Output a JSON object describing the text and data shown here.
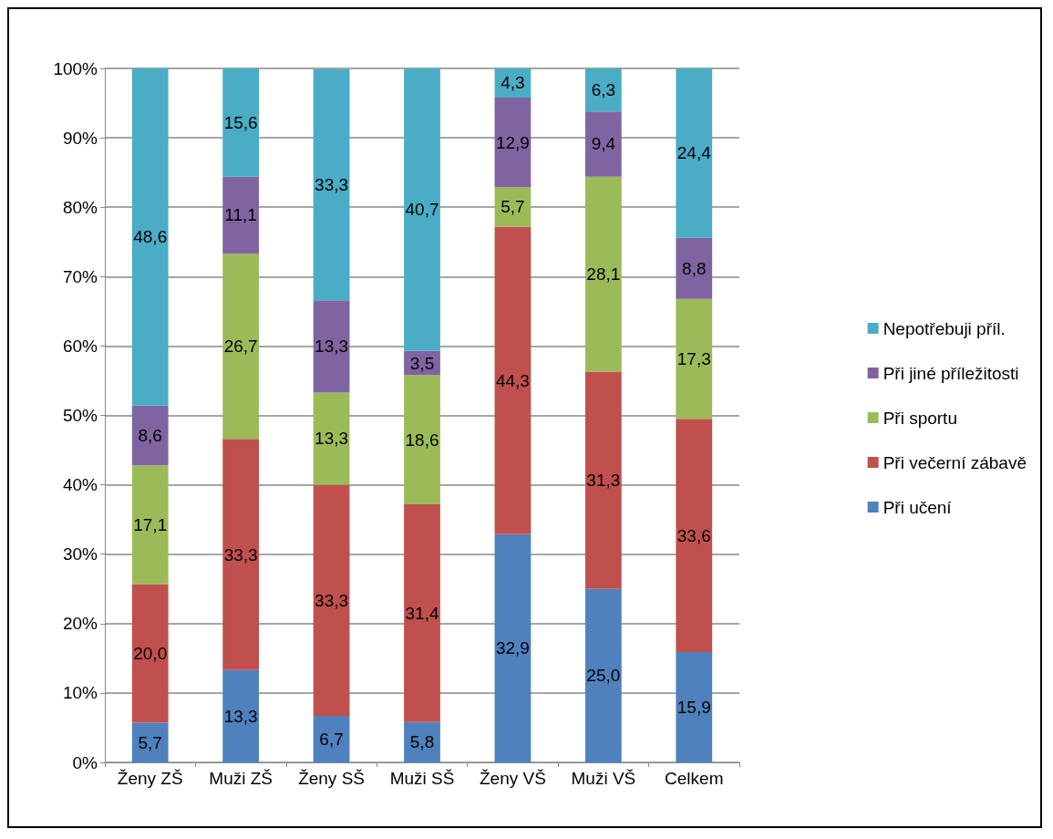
{
  "chart_data": {
    "type": "bar",
    "stacked": true,
    "categories": [
      "Ženy ZŠ",
      "Muži ZŠ",
      "Ženy SŠ",
      "Muži SŠ",
      "Ženy VŠ",
      "Muži VŠ",
      "Celkem"
    ],
    "series": [
      {
        "name": "Při učení",
        "color": "#4f81bd",
        "values": [
          5.7,
          13.3,
          6.7,
          5.8,
          32.9,
          25.0,
          15.9
        ],
        "value_labels": [
          "5,7",
          "13,3",
          "6,7",
          "5,8",
          "32,9",
          "25,0",
          "15,9"
        ]
      },
      {
        "name": "Při večerní zábavě",
        "color": "#c0504d",
        "values": [
          20.0,
          33.3,
          33.3,
          31.4,
          44.3,
          31.3,
          33.6
        ],
        "value_labels": [
          "20,0",
          "33,3",
          "33,3",
          "31,4",
          "44,3",
          "31,3",
          "33,6"
        ]
      },
      {
        "name": "Při sportu",
        "color": "#9bbb59",
        "values": [
          17.1,
          26.7,
          13.3,
          18.6,
          5.7,
          28.1,
          17.3
        ],
        "value_labels": [
          "17,1",
          "26,7",
          "13,3",
          "18,6",
          "5,7",
          "28,1",
          "17,3"
        ]
      },
      {
        "name": "Při jiné příležitosti",
        "color": "#8064a2",
        "values": [
          8.6,
          11.1,
          13.3,
          3.5,
          12.9,
          9.4,
          8.8
        ],
        "value_labels": [
          "8,6",
          "11,1",
          "13,3",
          "3,5",
          "12,9",
          "9,4",
          "8,8"
        ]
      },
      {
        "name": "Nepotřebuji příl.",
        "color": "#4bacc6",
        "values": [
          48.6,
          15.6,
          33.3,
          40.7,
          4.3,
          6.3,
          24.4
        ],
        "value_labels": [
          "48,6",
          "15,6",
          "33,3",
          "40,7",
          "4,3",
          "6,3",
          "24,4"
        ]
      }
    ],
    "ylim": [
      0,
      100
    ],
    "yticks": [
      {
        "value": 0,
        "label": "0%"
      },
      {
        "value": 10,
        "label": "10%"
      },
      {
        "value": 20,
        "label": "20%"
      },
      {
        "value": 30,
        "label": "30%"
      },
      {
        "value": 40,
        "label": "40%"
      },
      {
        "value": 50,
        "label": "50%"
      },
      {
        "value": 60,
        "label": "60%"
      },
      {
        "value": 70,
        "label": "70%"
      },
      {
        "value": 80,
        "label": "80%"
      },
      {
        "value": 90,
        "label": "90%"
      },
      {
        "value": 100,
        "label": "100%"
      }
    ],
    "grid": "y",
    "legend": "right"
  }
}
